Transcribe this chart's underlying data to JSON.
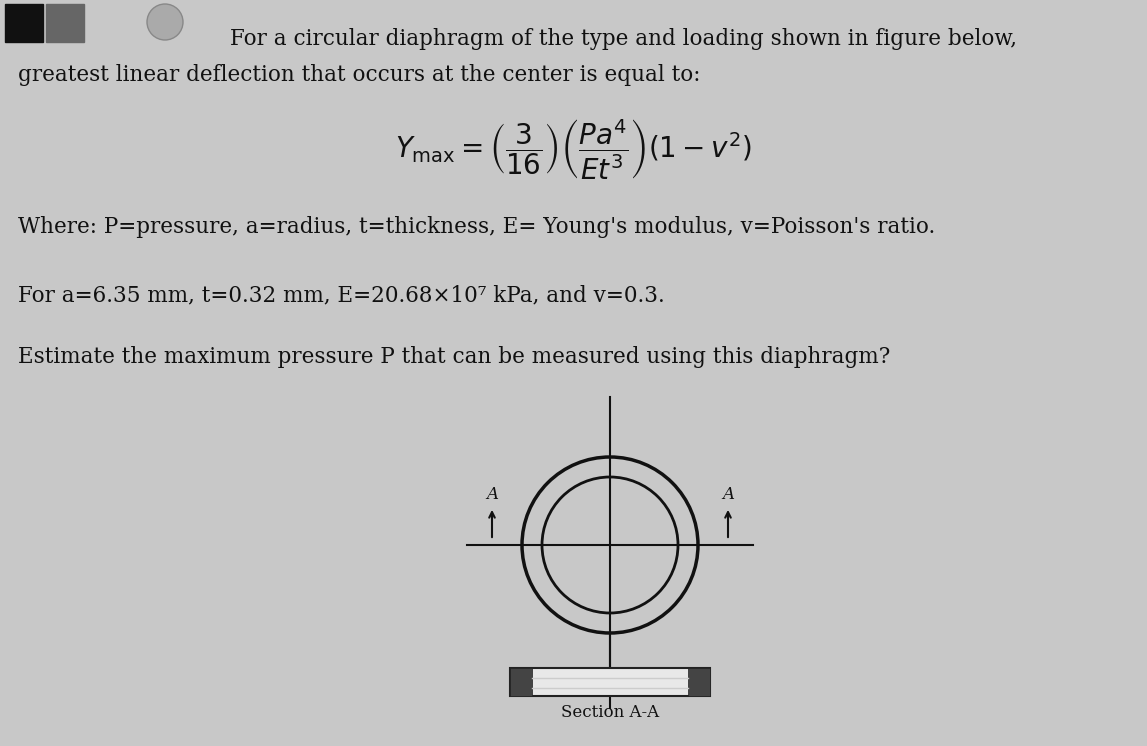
{
  "bg_color": "#c8c8c8",
  "title_line1": "For a circular diaphragm of the type and loading shown in figure below,",
  "title_line2": "greatest linear deflection that occurs at the center is equal to:",
  "formula_latex": "$Y_{\\mathrm{max}} = \\left(\\dfrac{3}{16}\\right)\\left(\\dfrac{Pa^4}{Et^3}\\right)\\left(1 - v^2\\right)$",
  "where_text": "Where: P=pressure, a=radius, t=thickness, E= Young's modulus, v=Poisson's ratio.",
  "given_text": "For a=6.35 mm, t=0.32 mm, E=20.68×10⁷ kPa, and v=0.3.",
  "estimate_text": "Estimate the maximum pressure P that can be measured using this diaphragm?",
  "section_label": "Section A-A",
  "text_color": "#111111",
  "font_size_body": 15.5,
  "font_size_formula": 20
}
